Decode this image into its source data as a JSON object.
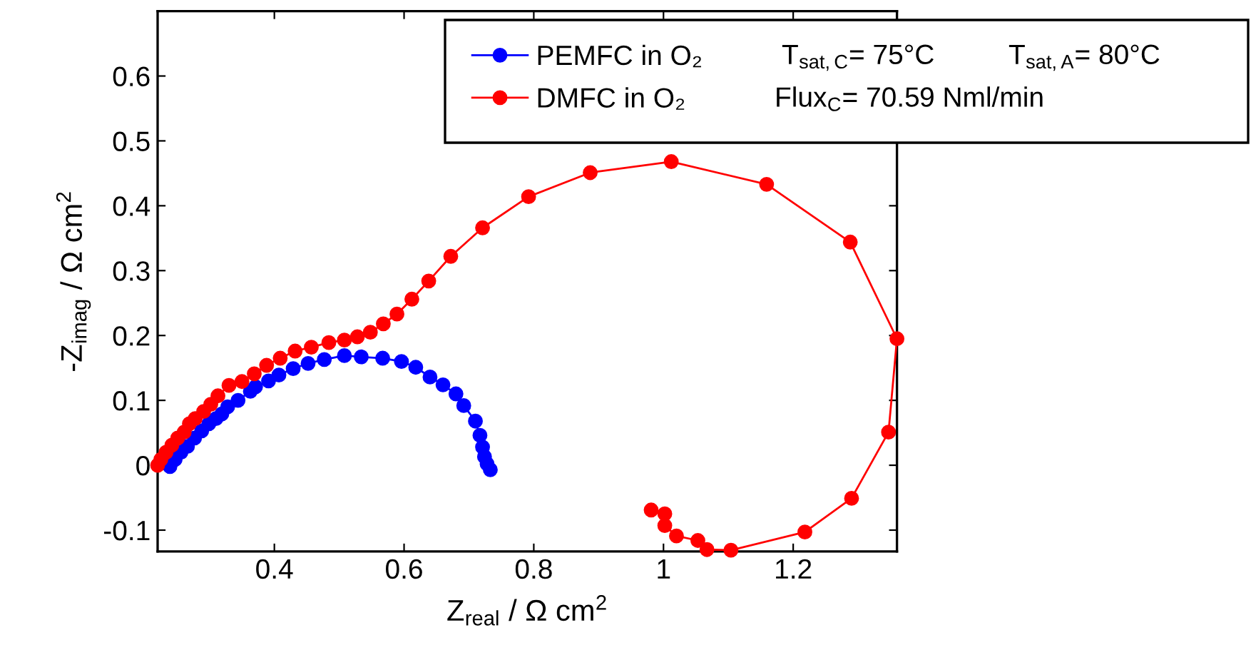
{
  "chart_data": {
    "type": "line",
    "xlabel": "Z$_{real}$ / Ω cm$^{2}$",
    "ylabel": "-Z$_{imag}$ / Ω cm$^{2}$",
    "xlim": [
      0.22,
      1.36
    ],
    "ylim": [
      -0.133,
      0.7
    ],
    "xticks": [
      0.4,
      0.6,
      0.8,
      1,
      1.2
    ],
    "yticks": [
      -0.1,
      0,
      0.1,
      0.2,
      0.3,
      0.4,
      0.5,
      0.6
    ],
    "marker": "circle",
    "line_style": "solid",
    "grid": false,
    "legend": "top right",
    "annotations": [
      "T$_{sat,C}$= 75°C",
      "T$_{sat,A}$= 80°C",
      "Flux$_{C}$= 70.59 Nml/min"
    ],
    "series": [
      {
        "name": "PEMFC in O₂",
        "color": "#0000ff",
        "x": [
          0.239,
          0.247,
          0.256,
          0.266,
          0.277,
          0.288,
          0.299,
          0.31,
          0.319,
          0.328,
          0.344,
          0.363,
          0.371,
          0.391,
          0.407,
          0.429,
          0.452,
          0.477,
          0.508,
          0.534,
          0.567,
          0.596,
          0.618,
          0.64,
          0.66,
          0.68,
          0.692,
          0.71,
          0.717,
          0.721,
          0.724,
          0.728,
          0.733
        ],
        "values": [
          -0.002,
          0.009,
          0.02,
          0.029,
          0.042,
          0.053,
          0.064,
          0.072,
          0.079,
          0.09,
          0.1,
          0.114,
          0.121,
          0.13,
          0.139,
          0.149,
          0.157,
          0.163,
          0.169,
          0.167,
          0.165,
          0.16,
          0.151,
          0.136,
          0.124,
          0.11,
          0.092,
          0.068,
          0.046,
          0.028,
          0.013,
          0.002,
          -0.007
        ]
      },
      {
        "name": "DMFC in O₂",
        "color": "#ff0000",
        "x": [
          0.22,
          0.225,
          0.233,
          0.242,
          0.251,
          0.261,
          0.269,
          0.278,
          0.291,
          0.302,
          0.313,
          0.33,
          0.35,
          0.369,
          0.388,
          0.409,
          0.432,
          0.457,
          0.484,
          0.508,
          0.528,
          0.548,
          0.568,
          0.589,
          0.612,
          0.638,
          0.672,
          0.721,
          0.792,
          0.887,
          1.012,
          1.159,
          1.288,
          1.36,
          1.347,
          1.29,
          1.218,
          1.104,
          1.067,
          1.053,
          1.02,
          1.002,
          1.002,
          0.981
        ],
        "values": [
          0.0,
          0.009,
          0.02,
          0.031,
          0.042,
          0.051,
          0.064,
          0.072,
          0.083,
          0.094,
          0.107,
          0.123,
          0.129,
          0.141,
          0.154,
          0.165,
          0.176,
          0.182,
          0.189,
          0.193,
          0.198,
          0.205,
          0.218,
          0.233,
          0.256,
          0.284,
          0.322,
          0.366,
          0.414,
          0.451,
          0.468,
          0.433,
          0.344,
          0.195,
          0.051,
          -0.051,
          -0.103,
          -0.131,
          -0.13,
          -0.116,
          -0.109,
          -0.093,
          -0.075,
          -0.069
        ]
      }
    ]
  }
}
